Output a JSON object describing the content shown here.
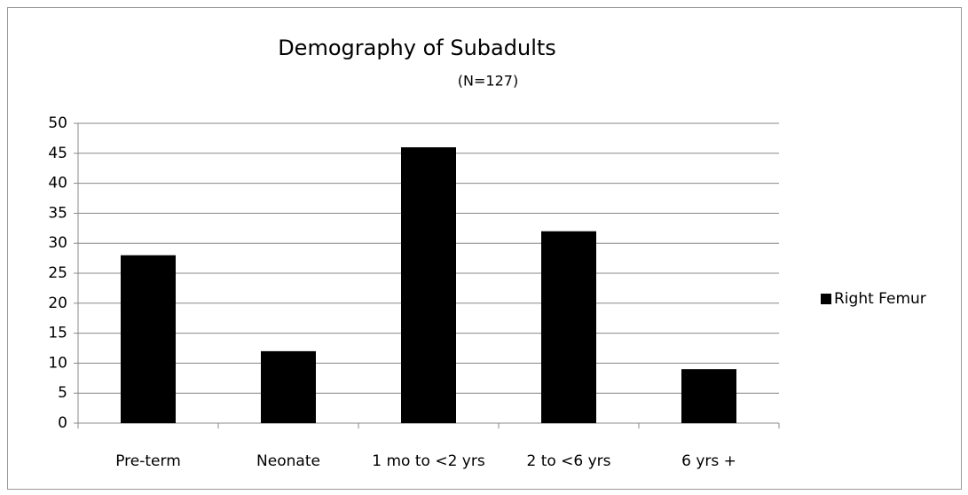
{
  "chart_data": {
    "type": "bar",
    "title": "Demography of Subadults",
    "subtitle": "(N=127)",
    "categories": [
      "Pre-term",
      "Neonate",
      "1 mo to <2 yrs",
      "2 to <6 yrs",
      "6 yrs +"
    ],
    "series": [
      {
        "name": "Right Femur",
        "color": "#000000",
        "values": [
          28,
          12,
          46,
          32,
          9
        ]
      }
    ],
    "ylim": [
      0,
      50
    ],
    "yticks": [
      0,
      5,
      10,
      15,
      20,
      25,
      30,
      35,
      40,
      45,
      50
    ],
    "grid": true,
    "legend": "right"
  }
}
